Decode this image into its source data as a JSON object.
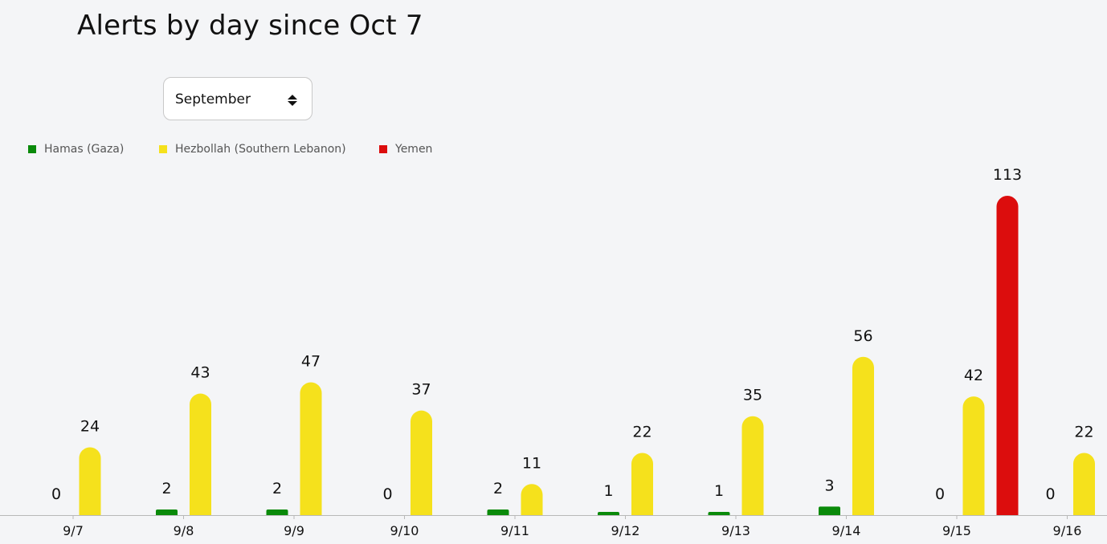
{
  "title": "Alerts by day since Oct 7",
  "month_select": {
    "value": "September"
  },
  "legend": [
    {
      "label": "Hamas (Gaza)",
      "color": "#0a8a0a"
    },
    {
      "label": "Hezbollah (Southern Lebanon)",
      "color": "#f5e11c"
    },
    {
      "label": "Yemen",
      "color": "#dc0d0d"
    }
  ],
  "chart_data": {
    "type": "bar",
    "categories": [
      "9/7",
      "9/8",
      "9/9",
      "9/10",
      "9/11",
      "9/12",
      "9/13",
      "9/14",
      "9/15",
      "9/16"
    ],
    "series": [
      {
        "name": "Hamas (Gaza)",
        "color": "#0a8a0a",
        "values": [
          0,
          2,
          2,
          0,
          2,
          1,
          1,
          3,
          0,
          0
        ],
        "labels": [
          "0",
          "2",
          "2",
          "0",
          "2",
          "1",
          "1",
          "3",
          "0",
          "0"
        ]
      },
      {
        "name": "Hezbollah (Southern Lebanon)",
        "color": "#f5e11c",
        "values": [
          24,
          43,
          47,
          37,
          11,
          22,
          35,
          56,
          42,
          22
        ],
        "labels": [
          "24",
          "43",
          "47",
          "37",
          "11",
          "22",
          "35",
          "56",
          "42",
          "22"
        ]
      },
      {
        "name": "Yemen",
        "color": "#dc0d0d",
        "values": [
          null,
          null,
          null,
          null,
          null,
          null,
          null,
          null,
          113,
          null
        ],
        "labels": [
          "",
          "",
          "",
          "",
          "",
          "",
          "",
          "",
          "113",
          ""
        ]
      }
    ],
    "ylim": [
      0,
      113
    ],
    "grid": false,
    "legend_position": "top-left"
  }
}
